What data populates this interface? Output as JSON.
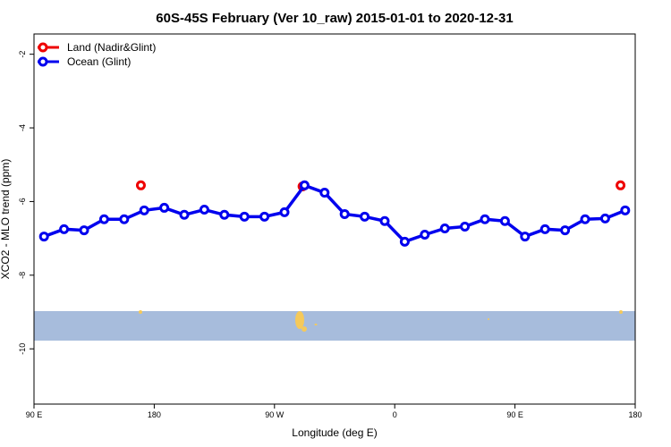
{
  "chart_data": {
    "type": "line",
    "title": "60S-45S February (Ver 10_raw)   2015-01-01 to 2020-12-31",
    "xlabel": "Longitude (deg E)",
    "ylabel": "XCO2 - MLO trend (ppm)",
    "xlim": [
      90,
      540
    ],
    "ylim": [
      -11.5,
      -1.45
    ],
    "xticks": [
      {
        "value": 90,
        "label": "90 E"
      },
      180,
      {
        "value": 270,
        "label": "90 W"
      },
      {
        "value": 360,
        "label": "0"
      },
      {
        "value": 450,
        "label": "90 E"
      },
      180.0001
    ],
    "yticks": [
      -2,
      -4,
      -6,
      -8,
      -10
    ],
    "legend": "top-left",
    "series": [
      {
        "name": "Land (Nadir&Glint)",
        "color": "#ee0000",
        "line": false,
        "x": [
          170,
          291,
          529
        ],
        "values": [
          -5.56,
          -5.59,
          -5.56
        ]
      },
      {
        "name": "Ocean (Glint)",
        "color": "#0000ee",
        "line": true,
        "x": [
          97.5,
          112.5,
          127.5,
          142.5,
          157.5,
          172.5,
          187.5,
          202.5,
          217.5,
          232.5,
          247.5,
          262.5,
          277.5,
          292.5,
          307.5,
          322.5,
          337.5,
          352.5,
          367.5,
          382.5,
          397.5,
          412.5,
          427.5,
          442.5,
          457.5,
          472.5,
          487.5,
          502.5,
          517.5,
          532.5
        ],
        "values": [
          -6.95,
          -6.75,
          -6.78,
          -6.48,
          -6.48,
          -6.24,
          -6.17,
          -6.36,
          -6.22,
          -6.36,
          -6.41,
          -6.41,
          -6.29,
          -5.56,
          -5.76,
          -6.34,
          -6.41,
          -6.53,
          -7.09,
          -6.9,
          -6.73,
          -6.68,
          -6.48,
          -6.53,
          -6.95,
          -6.75,
          -6.78,
          -6.48,
          -6.46,
          -6.24
        ]
      }
    ]
  }
}
